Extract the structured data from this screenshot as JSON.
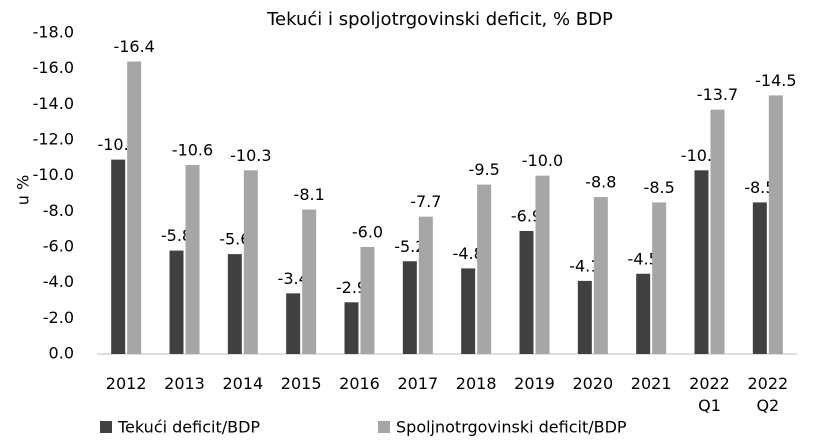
{
  "chart_data": {
    "type": "bar",
    "title": "Tekući i spoljotrgovinski deficit, % BDP",
    "y_label": "u %",
    "categories": [
      "2012",
      "2013",
      "2014",
      "2015",
      "2016",
      "2017",
      "2018",
      "2019",
      "2020",
      "2021",
      "2022 Q1",
      "2022 Q2"
    ],
    "series": [
      {
        "name": "Tekući deficit/BDP",
        "color": "#404040",
        "values": [
          -10.9,
          -5.8,
          -5.6,
          -3.4,
          -2.9,
          -5.2,
          -4.8,
          -6.9,
          -4.1,
          -4.5,
          -10.3,
          -8.5
        ],
        "value_labels": [
          "-10.9",
          "-5.8",
          "-5.6",
          "-3.4",
          "-2.9",
          "-5.2",
          "-4.8",
          "-6.9",
          "-4.1",
          "-4.5",
          "-10.3",
          "-8.5"
        ]
      },
      {
        "name": "Spoljnotrgovinski deficit/BDP",
        "color": "#a6a6a6",
        "values": [
          -16.4,
          -10.6,
          -10.3,
          -8.1,
          -6.0,
          -7.7,
          -9.5,
          -10.0,
          -8.8,
          -8.5,
          -13.7,
          -14.5
        ],
        "value_labels": [
          "-16.4",
          "-10.6",
          "-10.3",
          "-8.1",
          "-6.0",
          "-7.7",
          "-9.5",
          "-10.0",
          "-8.8",
          "-8.5",
          "-13.7",
          "-14.5"
        ]
      }
    ],
    "ylim": [
      0,
      -18
    ],
    "yticks": [
      {
        "value": 0,
        "label": "0.0"
      },
      {
        "value": -2,
        "label": "-2.0"
      },
      {
        "value": -4,
        "label": "-4.0"
      },
      {
        "value": -6,
        "label": "-6.0"
      },
      {
        "value": -8,
        "label": "-8.0"
      },
      {
        "value": -10,
        "label": "-10.0"
      },
      {
        "value": -12,
        "label": "-12.0"
      },
      {
        "value": -14,
        "label": "-14.0"
      },
      {
        "value": -16,
        "label": "-16.0"
      },
      {
        "value": -18,
        "label": "-18.0"
      }
    ],
    "grid": false,
    "legend": "bottom"
  }
}
